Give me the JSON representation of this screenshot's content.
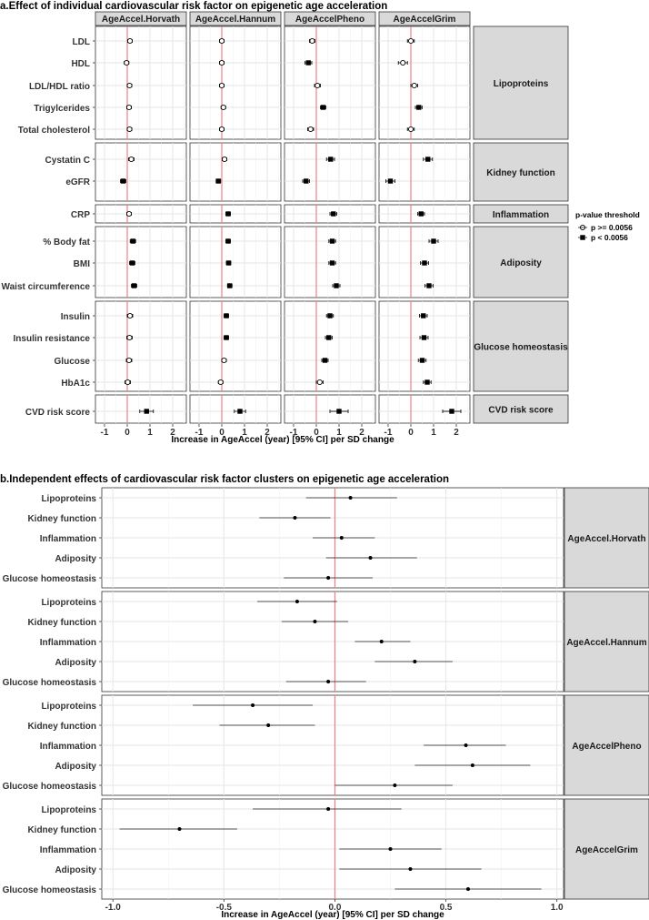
{
  "chart_data": [
    {
      "type": "forest",
      "title": "a.Effect of individual cardiovascular risk factor on epigenetic age acceleration",
      "xlabel": "Increase in AgeAccel (year)  [95% CI] per SD change",
      "xlim": [
        -1.4,
        2.6
      ],
      "xticks": [
        -1,
        0,
        1,
        2
      ],
      "columns": [
        "AgeAccel.Horvath",
        "AgeAccel.Hannum",
        "AgeAccelPheno",
        "AgeAccelGrim"
      ],
      "legend": {
        "title": "p-value threshold",
        "items": [
          {
            "label": "p >= 0.0056",
            "marker": "open-circle"
          },
          {
            "label": "p < 0.0056",
            "marker": "filled-square"
          }
        ]
      },
      "groups": [
        {
          "name": "Lipoproteins",
          "rows": [
            {
              "label": "LDL",
              "est": [
                [
                  0.12,
                  0.02,
                  0.22,
                  false
                ],
                [
                  0.0,
                  -0.1,
                  0.1,
                  false
                ],
                [
                  -0.18,
                  -0.3,
                  -0.06,
                  false
                ],
                [
                  0.0,
                  -0.15,
                  0.15,
                  false
                ]
              ]
            },
            {
              "label": "HDL",
              "est": [
                [
                  -0.03,
                  -0.13,
                  0.07,
                  false
                ],
                [
                  0.0,
                  -0.1,
                  0.1,
                  false
                ],
                [
                  -0.35,
                  -0.5,
                  -0.2,
                  true
                ],
                [
                  -0.35,
                  -0.55,
                  -0.15,
                  false
                ]
              ]
            },
            {
              "label": "LDL/HDL ratio",
              "est": [
                [
                  0.1,
                  0.0,
                  0.2,
                  false
                ],
                [
                  0.0,
                  -0.1,
                  0.1,
                  false
                ],
                [
                  0.05,
                  -0.08,
                  0.18,
                  false
                ],
                [
                  0.15,
                  0.0,
                  0.3,
                  false
                ]
              ]
            },
            {
              "label": "Trigylcerides",
              "est": [
                [
                  0.08,
                  -0.02,
                  0.18,
                  false
                ],
                [
                  0.07,
                  -0.03,
                  0.17,
                  false
                ],
                [
                  0.3,
                  0.18,
                  0.42,
                  true
                ],
                [
                  0.35,
                  0.2,
                  0.5,
                  true
                ]
              ]
            },
            {
              "label": "Total cholesterol",
              "est": [
                [
                  0.1,
                  0.0,
                  0.2,
                  false
                ],
                [
                  0.0,
                  -0.1,
                  0.1,
                  false
                ],
                [
                  -0.25,
                  -0.38,
                  -0.12,
                  false
                ],
                [
                  0.0,
                  -0.15,
                  0.15,
                  false
                ]
              ]
            }
          ]
        },
        {
          "name": "Kidney function",
          "rows": [
            {
              "label": "Cystatin C",
              "est": [
                [
                  0.18,
                  0.06,
                  0.3,
                  false
                ],
                [
                  0.12,
                  0.02,
                  0.22,
                  false
                ],
                [
                  0.63,
                  0.45,
                  0.8,
                  true
                ],
                [
                  0.75,
                  0.55,
                  0.95,
                  true
                ]
              ]
            },
            {
              "label": "eGFR",
              "est": [
                [
                  -0.18,
                  -0.3,
                  -0.06,
                  true
                ],
                [
                  -0.15,
                  -0.25,
                  -0.05,
                  true
                ],
                [
                  -0.45,
                  -0.6,
                  -0.3,
                  true
                ],
                [
                  -0.9,
                  -1.1,
                  -0.7,
                  true
                ]
              ]
            }
          ]
        },
        {
          "name": "Inflammation",
          "rows": [
            {
              "label": "CRP",
              "est": [
                [
                  0.08,
                  -0.02,
                  0.18,
                  false
                ],
                [
                  0.28,
                  0.18,
                  0.38,
                  true
                ],
                [
                  0.75,
                  0.6,
                  0.9,
                  true
                ],
                [
                  0.45,
                  0.3,
                  0.6,
                  true
                ]
              ]
            }
          ]
        },
        {
          "name": "Adiposity",
          "rows": [
            {
              "label": "% Body fat",
              "est": [
                [
                  0.25,
                  0.13,
                  0.37,
                  true
                ],
                [
                  0.28,
                  0.18,
                  0.38,
                  true
                ],
                [
                  0.7,
                  0.55,
                  0.85,
                  true
                ],
                [
                  1.0,
                  0.8,
                  1.2,
                  true
                ]
              ]
            },
            {
              "label": "BMI",
              "est": [
                [
                  0.22,
                  0.1,
                  0.34,
                  true
                ],
                [
                  0.3,
                  0.2,
                  0.4,
                  true
                ],
                [
                  0.7,
                  0.55,
                  0.85,
                  true
                ],
                [
                  0.6,
                  0.42,
                  0.78,
                  true
                ]
              ]
            },
            {
              "label": "Waist circumference",
              "est": [
                [
                  0.3,
                  0.18,
                  0.42,
                  true
                ],
                [
                  0.35,
                  0.25,
                  0.45,
                  true
                ],
                [
                  0.88,
                  0.72,
                  1.04,
                  true
                ],
                [
                  0.8,
                  0.62,
                  0.98,
                  true
                ]
              ]
            }
          ]
        },
        {
          "name": "Glucose homeostasis",
          "rows": [
            {
              "label": "Insulin",
              "est": [
                [
                  0.12,
                  0.0,
                  0.24,
                  false
                ],
                [
                  0.2,
                  0.1,
                  0.3,
                  true
                ],
                [
                  0.6,
                  0.45,
                  0.75,
                  true
                ],
                [
                  0.55,
                  0.38,
                  0.72,
                  true
                ]
              ]
            },
            {
              "label": "Insulin resistance",
              "est": [
                [
                  0.1,
                  -0.02,
                  0.22,
                  false
                ],
                [
                  0.2,
                  0.1,
                  0.3,
                  true
                ],
                [
                  0.55,
                  0.4,
                  0.7,
                  true
                ],
                [
                  0.58,
                  0.4,
                  0.76,
                  true
                ]
              ]
            },
            {
              "label": "Glucose",
              "est": [
                [
                  0.08,
                  -0.04,
                  0.2,
                  false
                ],
                [
                  0.1,
                  0.0,
                  0.2,
                  false
                ],
                [
                  0.38,
                  0.24,
                  0.52,
                  true
                ],
                [
                  0.5,
                  0.33,
                  0.67,
                  true
                ]
              ]
            },
            {
              "label": "HbA1c",
              "est": [
                [
                  0.02,
                  -0.1,
                  0.14,
                  false
                ],
                [
                  -0.05,
                  -0.15,
                  0.05,
                  false
                ],
                [
                  0.15,
                  0.0,
                  0.3,
                  false
                ],
                [
                  0.72,
                  0.55,
                  0.89,
                  true
                ]
              ]
            }
          ]
        },
        {
          "name": "CVD risk score",
          "rows": [
            {
              "label": "CVD risk score",
              "est": [
                [
                  0.85,
                  0.55,
                  1.15,
                  true
                ],
                [
                  0.8,
                  0.55,
                  1.05,
                  true
                ],
                [
                  1.0,
                  0.6,
                  1.4,
                  true
                ],
                [
                  1.8,
                  1.4,
                  2.2,
                  true
                ]
              ]
            }
          ]
        }
      ]
    },
    {
      "type": "forest",
      "title": "b.Independent effects of cardiovascular risk factor clusters on epigenetic age acceleration",
      "xlabel": "Increase in AgeAccel (year)  [95% CI] per SD change",
      "xlim": [
        -1.05,
        1.03
      ],
      "xticks": [
        -1.0,
        -0.5,
        0.0,
        0.5,
        1.0
      ],
      "xtick_labels": [
        "-1.0",
        "-0.5",
        "0.0",
        "0.5",
        "1.0"
      ],
      "rows": [
        "Lipoproteins",
        "Kidney function",
        "Inflammation",
        "Adiposity",
        "Glucose homeostasis"
      ],
      "panels": [
        {
          "name": "AgeAccel.Horvath",
          "est": [
            [
              0.07,
              -0.13,
              0.28
            ],
            [
              -0.18,
              -0.34,
              -0.02
            ],
            [
              0.03,
              -0.1,
              0.18
            ],
            [
              0.16,
              -0.04,
              0.37
            ],
            [
              -0.03,
              -0.23,
              0.17
            ]
          ]
        },
        {
          "name": "AgeAccel.Hannum",
          "est": [
            [
              -0.17,
              -0.35,
              0.01
            ],
            [
              -0.09,
              -0.24,
              0.06
            ],
            [
              0.21,
              0.09,
              0.34
            ],
            [
              0.36,
              0.18,
              0.53
            ],
            [
              -0.03,
              -0.22,
              0.14
            ]
          ]
        },
        {
          "name": "AgeAccelPheno",
          "est": [
            [
              -0.37,
              -0.64,
              -0.1
            ],
            [
              -0.3,
              -0.52,
              -0.09
            ],
            [
              0.59,
              0.4,
              0.77
            ],
            [
              0.62,
              0.36,
              0.88
            ],
            [
              0.27,
              0.0,
              0.53
            ]
          ]
        },
        {
          "name": "AgeAccelGrim",
          "est": [
            [
              -0.03,
              -0.37,
              0.3
            ],
            [
              -0.7,
              -0.97,
              -0.44
            ],
            [
              0.25,
              0.02,
              0.48
            ],
            [
              0.34,
              0.02,
              0.66
            ],
            [
              0.6,
              0.27,
              0.93
            ]
          ]
        }
      ]
    }
  ]
}
